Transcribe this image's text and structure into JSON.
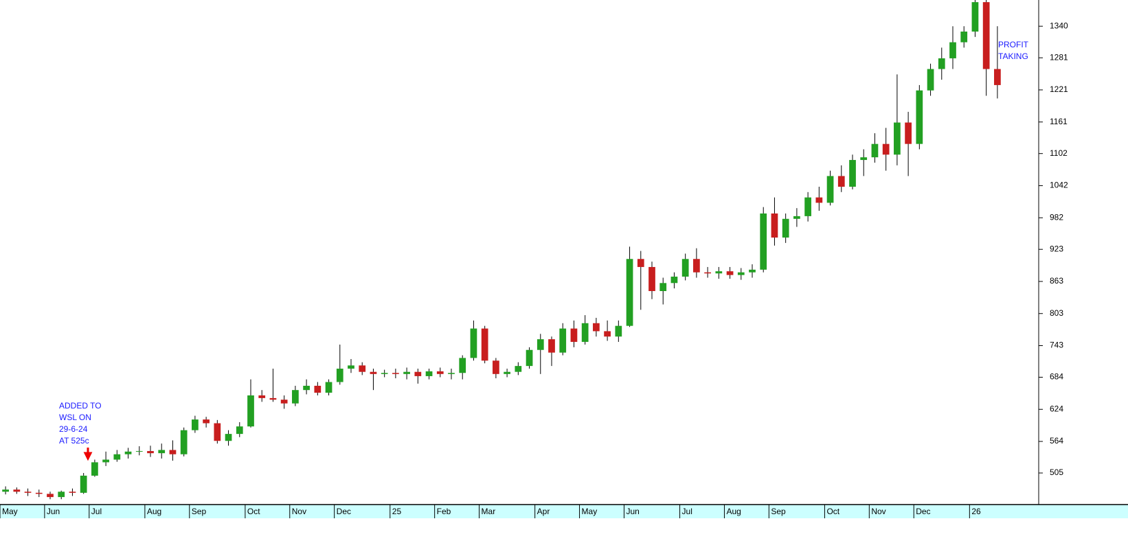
{
  "chart_data": {
    "type": "candlestick",
    "categories": [
      "May",
      null,
      null,
      null,
      "Jun",
      null,
      null,
      null,
      "Jul",
      null,
      null,
      null,
      null,
      "Aug",
      null,
      null,
      null,
      "Sep",
      null,
      null,
      null,
      null,
      "Oct",
      null,
      null,
      null,
      "Nov",
      null,
      null,
      null,
      "Dec",
      null,
      null,
      null,
      null,
      "25",
      null,
      null,
      null,
      "Feb",
      null,
      null,
      null,
      "Mar",
      null,
      null,
      null,
      null,
      "Apr",
      null,
      null,
      null,
      "May",
      null,
      null,
      null,
      "Jun",
      null,
      null,
      null,
      null,
      "Jul",
      null,
      null,
      null,
      "Aug",
      null,
      null,
      null,
      "Sep",
      null,
      null,
      null,
      null,
      "Oct",
      null,
      null,
      null,
      "Nov",
      null,
      null,
      null,
      "Dec",
      null,
      null,
      null,
      null,
      "26",
      null,
      null
    ],
    "open": [
      470,
      474,
      470,
      468,
      466,
      460,
      470,
      468,
      500,
      525,
      530,
      540,
      545,
      546,
      542,
      548,
      540,
      585,
      605,
      598,
      565,
      578,
      592,
      650,
      645,
      642,
      635,
      660,
      668,
      655,
      675,
      700,
      706,
      694,
      690,
      692,
      690,
      694,
      686,
      695,
      690,
      692,
      720,
      775,
      715,
      690,
      694,
      705,
      735,
      755,
      730,
      775,
      750,
      785,
      770,
      760,
      780,
      905,
      890,
      845,
      860,
      872,
      905,
      880,
      878,
      882,
      875,
      880,
      885,
      990,
      945,
      980,
      985,
      1020,
      1010,
      1060,
      1040,
      1090,
      1095,
      1120,
      1100,
      1160,
      1120,
      1220,
      1260,
      1280,
      1310,
      1330,
      1385,
      1260
    ],
    "high": [
      480,
      478,
      476,
      474,
      470,
      472,
      476,
      505,
      530,
      545,
      548,
      552,
      555,
      556,
      560,
      566,
      590,
      612,
      610,
      604,
      585,
      600,
      680,
      660,
      700,
      650,
      668,
      680,
      675,
      680,
      745,
      718,
      712,
      700,
      698,
      700,
      702,
      700,
      700,
      702,
      700,
      725,
      790,
      780,
      720,
      700,
      712,
      740,
      765,
      760,
      785,
      790,
      800,
      795,
      790,
      790,
      928,
      920,
      900,
      870,
      880,
      915,
      925,
      890,
      890,
      890,
      888,
      895,
      1002,
      1020,
      990,
      1000,
      1030,
      1040,
      1070,
      1080,
      1100,
      1110,
      1140,
      1150,
      1250,
      1180,
      1230,
      1270,
      1300,
      1340,
      1340,
      1395,
      1395,
      1340
    ],
    "low": [
      465,
      466,
      462,
      460,
      456,
      456,
      462,
      466,
      498,
      518,
      526,
      532,
      538,
      535,
      532,
      528,
      536,
      580,
      590,
      560,
      556,
      572,
      590,
      638,
      638,
      625,
      630,
      652,
      650,
      650,
      670,
      692,
      688,
      660,
      684,
      682,
      680,
      672,
      680,
      684,
      680,
      680,
      715,
      710,
      682,
      684,
      688,
      700,
      690,
      705,
      725,
      740,
      745,
      760,
      752,
      750,
      778,
      810,
      830,
      820,
      850,
      865,
      870,
      870,
      868,
      868,
      866,
      870,
      880,
      930,
      935,
      965,
      975,
      995,
      1005,
      1030,
      1035,
      1060,
      1085,
      1070,
      1080,
      1060,
      1110,
      1210,
      1240,
      1260,
      1300,
      1320,
      1210,
      1205
    ],
    "close": [
      474,
      470,
      468,
      466,
      460,
      470,
      468,
      500,
      525,
      530,
      540,
      545,
      546,
      542,
      548,
      540,
      585,
      605,
      598,
      565,
      578,
      592,
      650,
      645,
      642,
      635,
      660,
      668,
      655,
      675,
      700,
      706,
      694,
      690,
      692,
      690,
      694,
      686,
      695,
      690,
      692,
      720,
      775,
      715,
      690,
      694,
      705,
      735,
      755,
      730,
      775,
      750,
      785,
      770,
      760,
      780,
      905,
      890,
      845,
      860,
      872,
      905,
      880,
      878,
      882,
      875,
      880,
      885,
      990,
      945,
      980,
      985,
      1020,
      1010,
      1060,
      1040,
      1090,
      1095,
      1120,
      1100,
      1160,
      1120,
      1220,
      1260,
      1280,
      1310,
      1330,
      1385,
      1260,
      1230
    ],
    "up_color": "#22a022",
    "down_color": "#c81e1e",
    "ylim": [
      446,
      1389
    ],
    "yticks": [
      505,
      564,
      624,
      684,
      743,
      803,
      863,
      923,
      982,
      1042,
      1102,
      1161,
      1221,
      1281,
      1340
    ],
    "grid": false,
    "annotations": [
      [
        "ADDED TO",
        "WSL ON",
        "29-6-24",
        "AT 525c"
      ],
      [
        "PROFIT",
        "TAKING"
      ]
    ]
  }
}
